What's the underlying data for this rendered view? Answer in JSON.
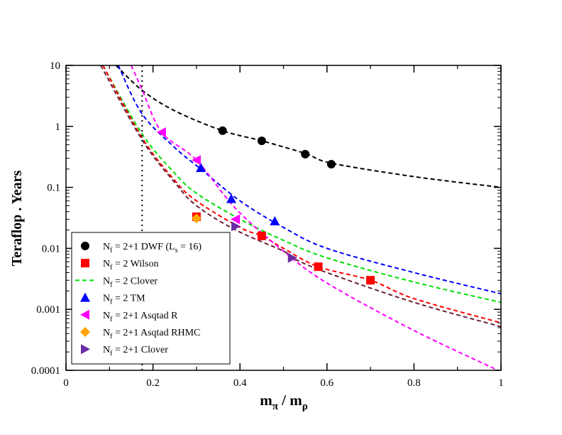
{
  "chart_data": {
    "type": "scatter",
    "title": "",
    "xlabel": {
      "main": "m",
      "sub1": "π",
      "sep": " / m",
      "sub2": "ρ"
    },
    "ylabel": "Teraflop . Years",
    "xlim": [
      0,
      1
    ],
    "ylim": [
      0.0001,
      10
    ],
    "y_scale": "log",
    "grid": false,
    "legend_position": "bottom-left",
    "x_ticks": [
      "0",
      "0.2",
      "0.4",
      "0.6",
      "0.8",
      "1"
    ],
    "x_tick_values": [
      0,
      0.2,
      0.4,
      0.6,
      0.8,
      1
    ],
    "y_ticks": [
      "0.0001",
      "0.001",
      "0.01",
      "0.1",
      "1",
      "10"
    ],
    "y_tick_values": [
      0.0001,
      0.001,
      0.01,
      0.1,
      1,
      10
    ],
    "vertical_line": {
      "x": 0.175,
      "style": "dotted"
    },
    "legend": [
      {
        "sym": "circle",
        "color": "#000000",
        "pre": "N",
        "sub": "f",
        "post": " = 2+1 DWF (L",
        "sub2": "s",
        "post2": " = 16)"
      },
      {
        "sym": "square",
        "color": "#ff0000",
        "pre": "N",
        "sub": "f",
        "post": " = 2 Wilson"
      },
      {
        "sym": "dash",
        "color": "#00e000",
        "pre": "N",
        "sub": "f",
        "post": " = 2 Clover"
      },
      {
        "sym": "triangle-up",
        "color": "#0000ff",
        "pre": "N",
        "sub": "f",
        "post": " = 2 TM"
      },
      {
        "sym": "triangle-left",
        "color": "#ff00ff",
        "pre": "N",
        "sub": "f",
        "post": " = 2+1 Asqtad R"
      },
      {
        "sym": "diamond",
        "color": "#ffa500",
        "pre": "N",
        "sub": "f",
        "post": " = 2+1 Asqtad RHMC"
      },
      {
        "sym": "triangle-right",
        "color": "#6a2ca8",
        "pre": "N",
        "sub": "f",
        "post": " = 2+1 Clover"
      }
    ],
    "series": [
      {
        "symbol": "circle",
        "color": "#000000",
        "x": [
          0.36,
          0.45,
          0.55,
          0.61
        ],
        "y": [
          0.85,
          0.58,
          0.35,
          0.24
        ]
      },
      {
        "symbol": "square",
        "color": "#ff0000",
        "x": [
          0.3,
          0.45,
          0.58,
          0.7
        ],
        "y": [
          0.033,
          0.016,
          0.005,
          0.003
        ]
      },
      {
        "symbol": "triangle-up",
        "color": "#0000ff",
        "x": [
          0.31,
          0.38,
          0.48
        ],
        "y": [
          0.21,
          0.065,
          0.028
        ]
      },
      {
        "symbol": "triangle-left",
        "color": "#ff00ff",
        "x": [
          0.22,
          0.3,
          0.39
        ],
        "y": [
          0.8,
          0.28,
          0.03
        ]
      },
      {
        "symbol": "diamond",
        "color": "#ffa500",
        "x": [
          0.3
        ],
        "y": [
          0.031
        ]
      },
      {
        "symbol": "triangle-right",
        "color": "#6a2ca8",
        "x": [
          0.39,
          0.52
        ],
        "y": [
          0.023,
          0.007
        ]
      }
    ],
    "curves": [
      {
        "color": "#000000",
        "x": [
          0.115,
          0.175,
          0.25,
          0.36,
          0.45,
          0.55,
          0.61,
          0.8,
          1.0
        ],
        "y": [
          10,
          3.9,
          1.8,
          0.85,
          0.58,
          0.36,
          0.25,
          0.15,
          0.1
        ]
      },
      {
        "color": "#0000ff",
        "x": [
          0.12,
          0.175,
          0.25,
          0.31,
          0.4,
          0.5,
          0.6,
          0.8,
          1.0
        ],
        "y": [
          10,
          1.6,
          0.45,
          0.2,
          0.06,
          0.022,
          0.01,
          0.004,
          0.0018
        ]
      },
      {
        "color": "#00e000",
        "x": [
          0.085,
          0.175,
          0.25,
          0.3,
          0.4,
          0.5,
          0.6,
          0.8,
          1.0
        ],
        "y": [
          10,
          0.75,
          0.17,
          0.08,
          0.03,
          0.0135,
          0.007,
          0.0028,
          0.0013
        ]
      },
      {
        "color": "#ff0000",
        "x": [
          0.085,
          0.175,
          0.25,
          0.3,
          0.4,
          0.45,
          0.5,
          0.58,
          0.7,
          0.8,
          1.0
        ],
        "y": [
          10,
          0.65,
          0.13,
          0.06,
          0.022,
          0.016,
          0.01,
          0.005,
          0.003,
          0.0015,
          0.0006
        ]
      },
      {
        "color": "#ff00ff",
        "x": [
          0.15,
          0.175,
          0.22,
          0.3,
          0.39,
          0.5,
          0.6,
          0.8,
          1.0
        ],
        "y": [
          10,
          4,
          0.8,
          0.28,
          0.045,
          0.009,
          0.0027,
          0.00045,
          9.5e-05
        ]
      },
      {
        "color": "#6a2135",
        "x": [
          0.08,
          0.175,
          0.25,
          0.3,
          0.39,
          0.5,
          0.52,
          0.6,
          0.8,
          1.0
        ],
        "y": [
          10,
          0.6,
          0.12,
          0.05,
          0.02,
          0.009,
          0.007,
          0.004,
          0.0013,
          0.00052
        ]
      }
    ]
  }
}
